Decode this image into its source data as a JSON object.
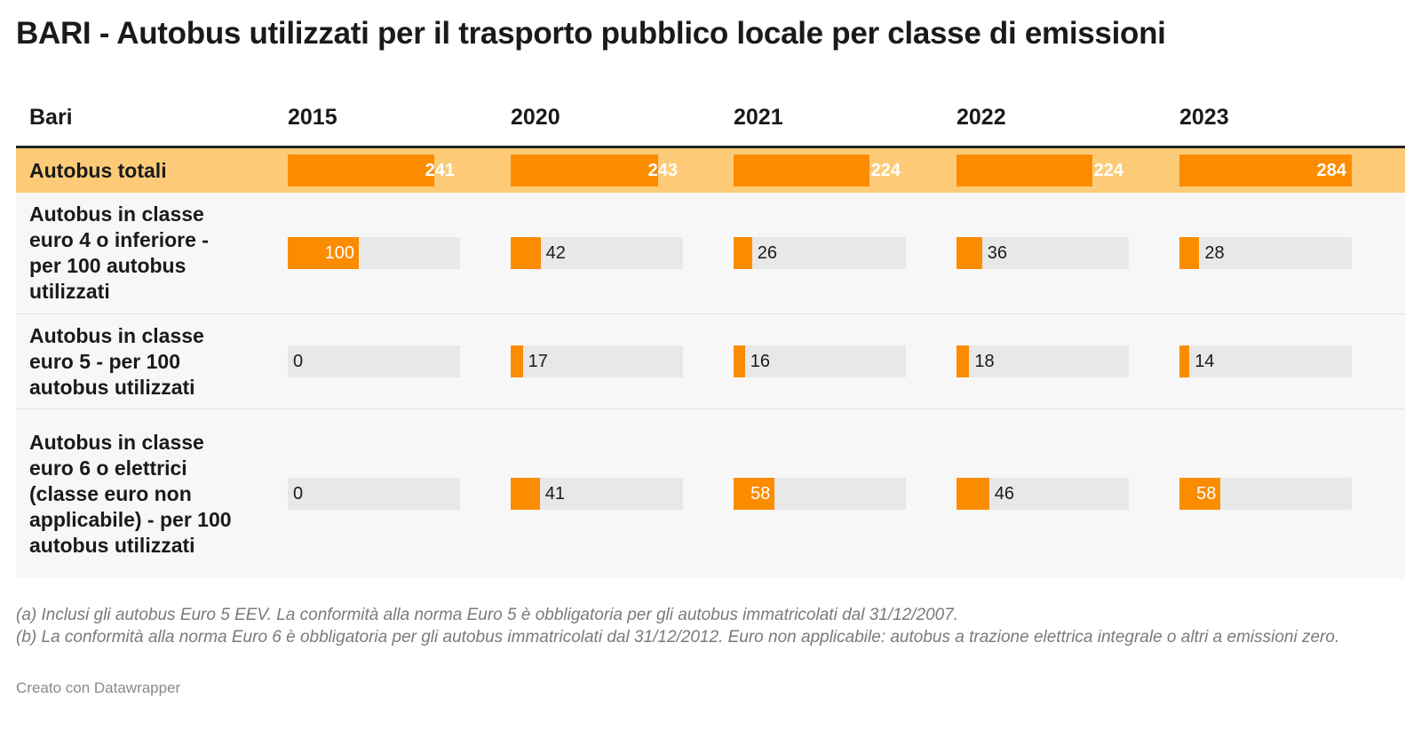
{
  "title": "BARI - Autobus utilizzati per il trasporto pubblico locale per classe di emissioni",
  "colors": {
    "bar": "#fb8c00",
    "bar_bg": "#e8e8e8",
    "highlight_row": "#fdcb78"
  },
  "chart_data": {
    "type": "table",
    "row_header": "Bari",
    "columns": [
      "2015",
      "2020",
      "2021",
      "2022",
      "2023"
    ],
    "rows": [
      {
        "label": "Autobus totali",
        "values": [
          241,
          243,
          224,
          224,
          284
        ],
        "highlight": true
      },
      {
        "label": "Autobus in classe euro 4 o inferiore - per 100 autobus utilizzati",
        "values": [
          100,
          42,
          26,
          36,
          28
        ]
      },
      {
        "label": "Autobus in classe euro 5 - per 100 autobus utilizzati",
        "values": [
          0,
          17,
          16,
          18,
          14
        ]
      },
      {
        "label": "Autobus in classe euro 6 o elettrici (classe euro non applicabile) - per 100 autobus utilizzati",
        "values": [
          0,
          41,
          58,
          46,
          58
        ]
      }
    ]
  },
  "footnotes": [
    "(a) Inclusi gli autobus Euro 5 EEV. La conformità alla norma Euro 5 è obbligatoria per gli autobus immatricolati dal 31/12/2007.",
    "(b) La conformità alla norma Euro 6 è obbligatoria per gli autobus immatricolati dal 31/12/2012. Euro non applicabile: autobus a trazione elettrica integrale o altri a emissioni zero."
  ],
  "credit": "Creato con Datawrapper"
}
